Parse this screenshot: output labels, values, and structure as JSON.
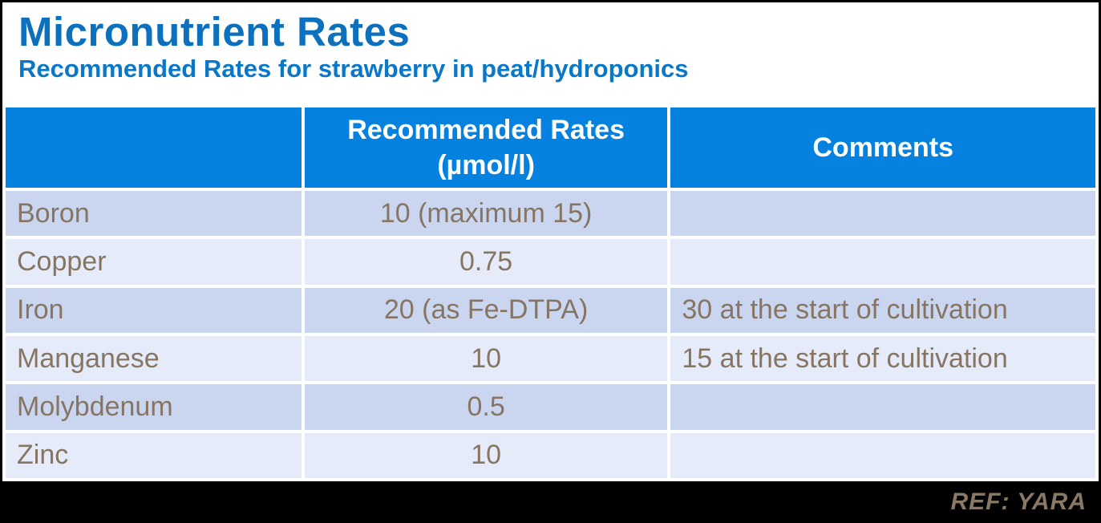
{
  "slide": {
    "title": "Micronutrient Rates",
    "subtitle": "Recommended Rates for strawberry in peat/hydroponics",
    "footer_ref": "REF: YARA"
  },
  "table": {
    "header": {
      "nutrient_blank": "",
      "rates_line1": "Recommended Rates",
      "rates_line2": "(µmol/l)",
      "comments": "Comments"
    },
    "rows": [
      {
        "nutrient": "Boron",
        "rate": "10 (maximum 15)",
        "comment": ""
      },
      {
        "nutrient": "Copper",
        "rate": "0.75",
        "comment": ""
      },
      {
        "nutrient": "Iron",
        "rate": "20 (as Fe-DTPA)",
        "comment": "30 at the start of cultivation"
      },
      {
        "nutrient": "Manganese",
        "rate": "10",
        "comment": "15 at the start of cultivation"
      },
      {
        "nutrient": "Molybdenum",
        "rate": "0.5",
        "comment": ""
      },
      {
        "nutrient": "Zinc",
        "rate": "10",
        "comment": ""
      }
    ]
  },
  "colors": {
    "title_blue": "#0c70bc",
    "subtitle_blue": "#0a78c8",
    "header_cell_blue": "#0582e0",
    "row_dark": "#cad6f0",
    "row_light": "#e6ebf9",
    "body_text": "#877563",
    "footer_band": "#000000",
    "footer_text": "#897863"
  }
}
